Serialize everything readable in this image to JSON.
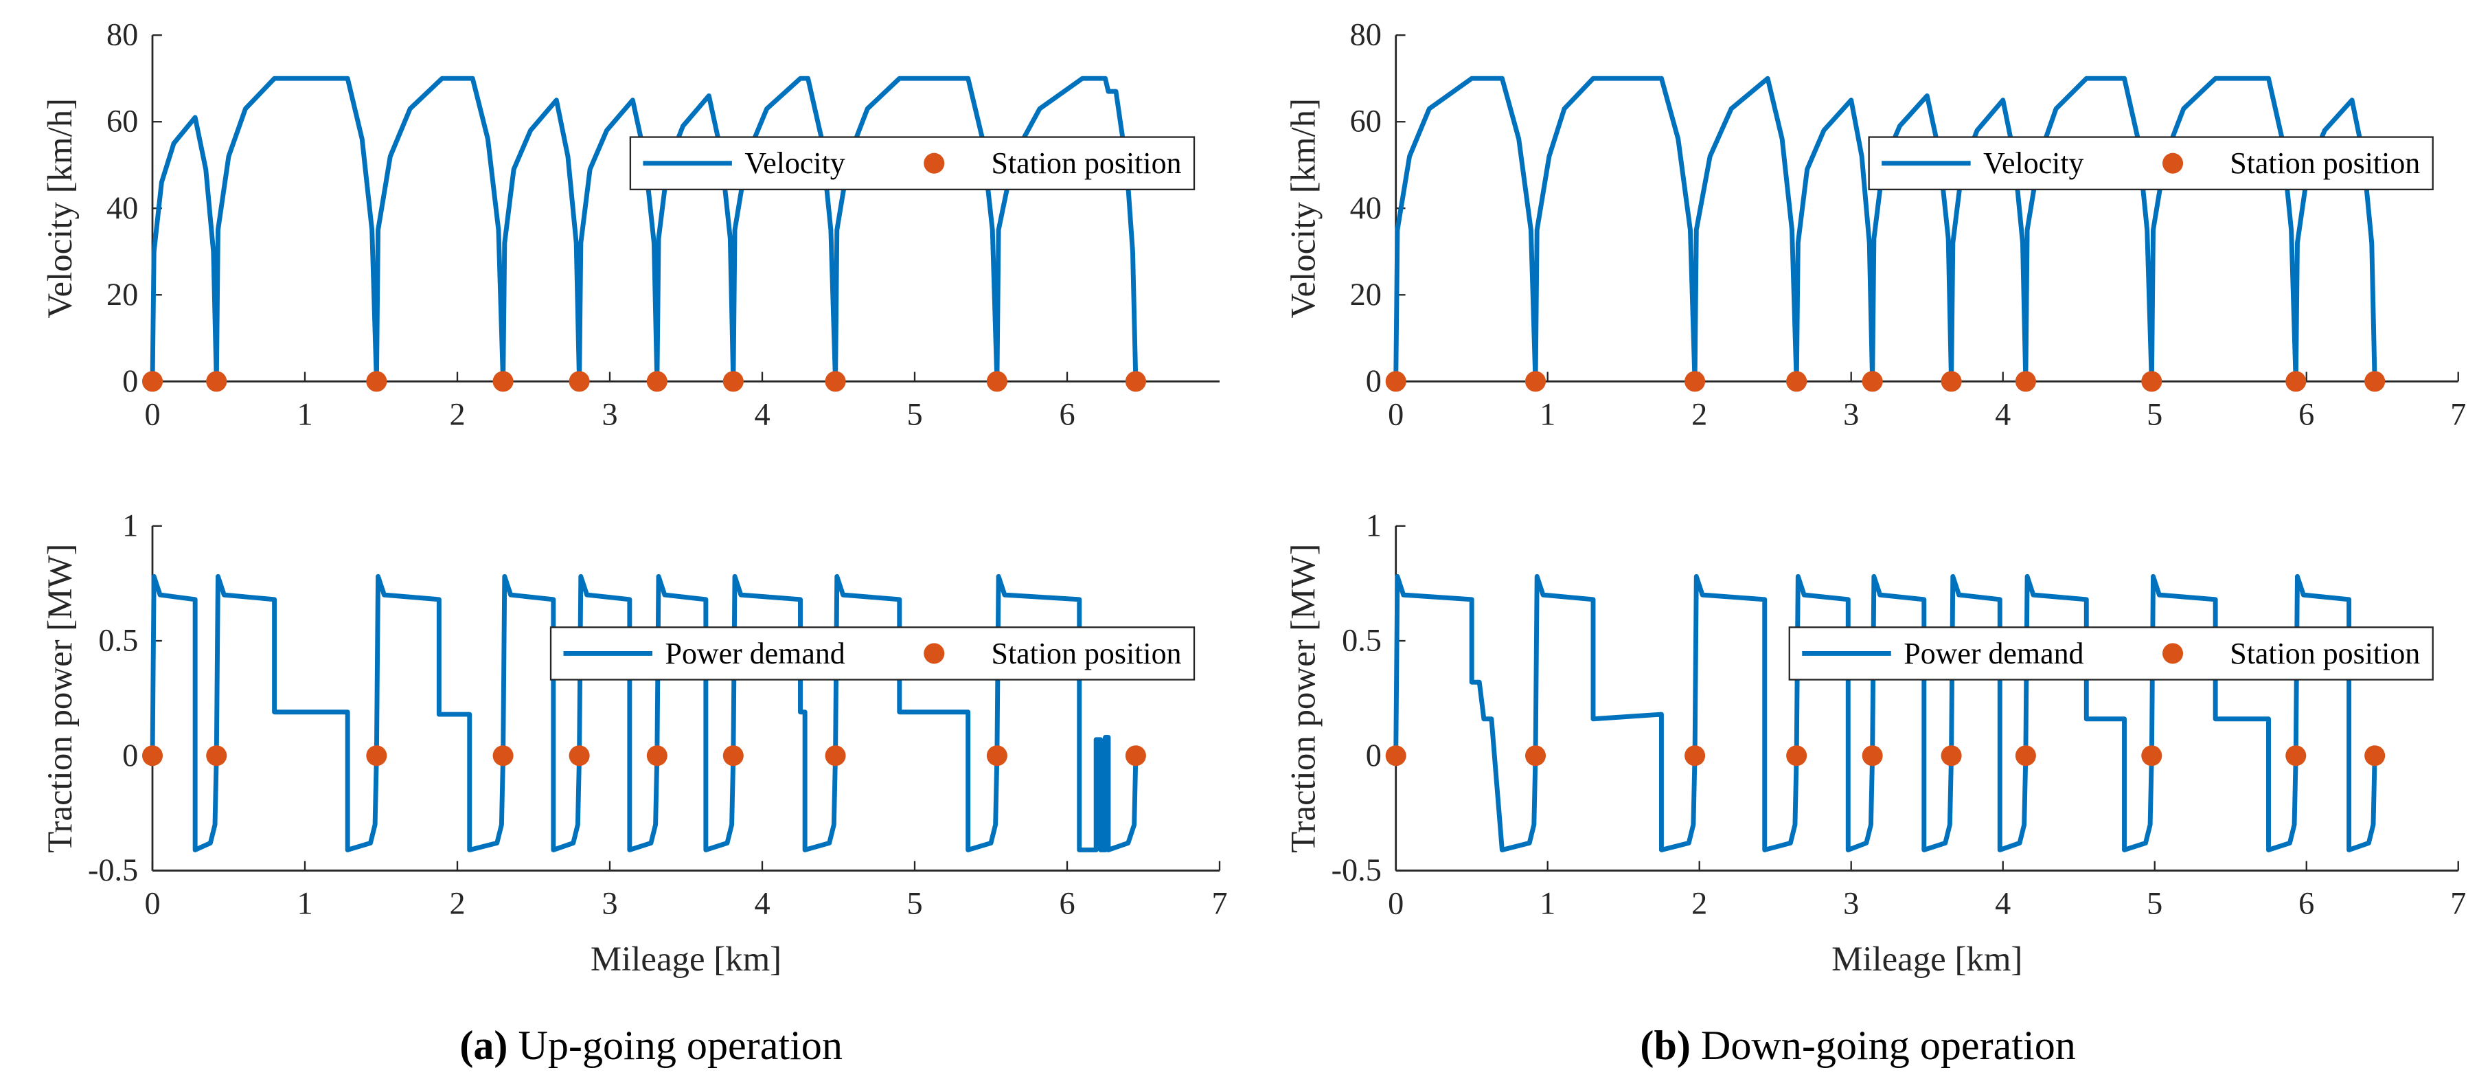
{
  "chart_data": [
    {
      "type": "line",
      "ylabel": "Velocity [km/h]",
      "xlim": [
        0,
        7
      ],
      "xticks": [
        0,
        1,
        2,
        3,
        4,
        5,
        6
      ],
      "ylim": [
        0,
        80
      ],
      "yticks": [
        0,
        20,
        40,
        60,
        80
      ],
      "legend": "right",
      "series": [
        {
          "name": "Velocity",
          "style": "line",
          "color": "#0072bd",
          "x": [
            0,
            0.01,
            0.06,
            0.14,
            0.28,
            0.35,
            0.4,
            0.42,
            0.43,
            0.5,
            0.61,
            0.8,
            1.28,
            1.375,
            1.44,
            1.47,
            1.48,
            1.56,
            1.69,
            1.9,
            2.1,
            2.2,
            2.27,
            2.3,
            2.31,
            2.37,
            2.48,
            2.65,
            2.725,
            2.78,
            2.8,
            2.81,
            2.87,
            2.98,
            3.15,
            3.23,
            3.29,
            3.31,
            3.32,
            3.38,
            3.48,
            3.65,
            3.73,
            3.79,
            3.81,
            3.82,
            3.9,
            4.03,
            4.25,
            4.3,
            4.39,
            4.45,
            4.48,
            4.49,
            4.57,
            4.69,
            4.9,
            5.35,
            5.445,
            5.51,
            5.54,
            5.55,
            5.65,
            5.82,
            6.1,
            6.25,
            6.27,
            6.32,
            6.39,
            6.43,
            6.45
          ],
          "values": [
            0,
            30,
            46,
            55,
            61,
            49,
            30,
            0,
            35,
            52,
            63,
            70,
            70,
            56,
            35,
            0,
            35,
            52,
            63,
            70,
            70,
            56,
            35,
            0,
            32,
            49,
            58,
            65,
            52,
            32,
            0,
            32,
            49,
            58,
            65,
            52,
            32,
            0,
            33,
            50,
            59,
            66,
            53,
            33,
            0,
            35,
            52,
            63,
            70,
            70,
            56,
            35,
            0,
            35,
            52,
            63,
            70,
            70,
            56,
            35,
            0,
            35,
            52,
            63,
            70,
            70,
            67,
            67,
            50,
            30,
            0
          ]
        },
        {
          "name": "Station position",
          "style": "markers",
          "color": "#d95319",
          "x": [
            0,
            0.42,
            1.47,
            2.3,
            2.8,
            3.31,
            3.81,
            4.48,
            5.54,
            6.45
          ],
          "values": [
            0,
            0,
            0,
            0,
            0,
            0,
            0,
            0,
            0,
            0
          ]
        }
      ]
    },
    {
      "type": "line",
      "ylabel": "Traction power [MW]",
      "xlabel": "Mileage [km]",
      "xlim": [
        0,
        7
      ],
      "xticks": [
        0,
        1,
        2,
        3,
        4,
        5,
        6,
        7
      ],
      "ylim": [
        -0.5,
        1
      ],
      "yticks": [
        -0.5,
        0,
        0.5,
        1
      ],
      "legend": "right",
      "series": [
        {
          "name": "Power demand",
          "style": "line",
          "color": "#0072bd",
          "x": [
            0,
            0.01,
            0.05,
            0.28,
            0.28,
            0.38,
            0.41,
            0.42,
            0.43,
            0.47,
            0.8,
            0.8,
            1.28,
            1.28,
            1.43,
            1.46,
            1.47,
            1.48,
            1.52,
            1.88,
            1.88,
            2.08,
            2.08,
            2.26,
            2.29,
            2.3,
            2.31,
            2.35,
            2.63,
            2.63,
            2.76,
            2.79,
            2.8,
            2.81,
            2.85,
            3.13,
            3.13,
            3.27,
            3.3,
            3.31,
            3.32,
            3.36,
            3.63,
            3.63,
            3.77,
            3.8,
            3.81,
            3.82,
            3.86,
            4.25,
            4.25,
            4.28,
            4.28,
            4.44,
            4.47,
            4.48,
            4.49,
            4.53,
            4.9,
            4.9,
            5.35,
            5.35,
            5.5,
            5.53,
            5.54,
            5.55,
            5.59,
            6.08,
            6.08,
            6.19,
            6.19,
            6.22,
            6.22,
            6.25,
            6.25,
            6.27,
            6.27,
            6.4,
            6.44,
            6.45
          ],
          "values": [
            0,
            0.78,
            0.7,
            0.68,
            -0.41,
            -0.38,
            -0.3,
            0,
            0.78,
            0.7,
            0.68,
            0.19,
            0.19,
            -0.41,
            -0.38,
            -0.3,
            0,
            0.78,
            0.7,
            0.68,
            0.18,
            0.18,
            -0.41,
            -0.38,
            -0.3,
            0,
            0.78,
            0.7,
            0.68,
            -0.41,
            -0.38,
            -0.3,
            0,
            0.78,
            0.7,
            0.68,
            -0.41,
            -0.38,
            -0.3,
            0,
            0.78,
            0.7,
            0.68,
            -0.41,
            -0.38,
            -0.3,
            0,
            0.78,
            0.7,
            0.68,
            0.19,
            0.19,
            -0.41,
            -0.38,
            -0.3,
            0,
            0.78,
            0.7,
            0.68,
            0.19,
            0.19,
            -0.41,
            -0.38,
            -0.3,
            0,
            0.78,
            0.7,
            0.68,
            -0.41,
            -0.41,
            0.07,
            0.07,
            -0.41,
            -0.41,
            0.08,
            0.08,
            -0.41,
            -0.38,
            -0.3,
            0
          ]
        },
        {
          "name": "Station position",
          "style": "markers",
          "color": "#d95319",
          "x": [
            0,
            0.42,
            1.47,
            2.3,
            2.8,
            3.31,
            3.81,
            4.48,
            5.54,
            6.45
          ],
          "values": [
            0,
            0,
            0,
            0,
            0,
            0,
            0,
            0,
            0,
            0
          ]
        }
      ]
    },
    {
      "type": "line",
      "ylabel": "Velocity [km/h]",
      "xlim": [
        0,
        7
      ],
      "xticks": [
        0,
        1,
        2,
        3,
        4,
        5,
        6,
        7
      ],
      "ylim": [
        0,
        80
      ],
      "yticks": [
        0,
        20,
        40,
        60,
        80
      ],
      "legend": "right",
      "series": [
        {
          "name": "Velocity",
          "style": "line",
          "color": "#0072bd",
          "x": [
            0,
            0.01,
            0.09,
            0.22,
            0.5,
            0.7,
            0.81,
            0.89,
            0.92,
            0.93,
            1.01,
            1.11,
            1.3,
            1.75,
            1.86,
            1.94,
            1.97,
            1.98,
            2.07,
            2.21,
            2.45,
            2.545,
            2.61,
            2.64,
            2.65,
            2.71,
            2.82,
            3.0,
            3.07,
            3.12,
            3.14,
            3.15,
            3.21,
            3.32,
            3.5,
            3.58,
            3.64,
            3.66,
            3.67,
            3.73,
            3.83,
            4.0,
            4.075,
            4.13,
            4.15,
            4.16,
            4.24,
            4.35,
            4.55,
            4.8,
            4.89,
            4.95,
            4.98,
            4.99,
            5.07,
            5.19,
            5.4,
            5.75,
            5.84,
            5.9,
            5.93,
            5.94,
            6.01,
            6.12,
            6.3,
            6.375,
            6.43,
            6.45
          ],
          "values": [
            0,
            35,
            52,
            63,
            70,
            70,
            56,
            35,
            0,
            35,
            52,
            63,
            70,
            70,
            56,
            35,
            0,
            35,
            52,
            63,
            70,
            56,
            35,
            0,
            32,
            49,
            58,
            65,
            52,
            32,
            0,
            33,
            50,
            59,
            66,
            53,
            33,
            0,
            32,
            49,
            58,
            65,
            52,
            32,
            0,
            35,
            52,
            63,
            70,
            70,
            56,
            35,
            0,
            35,
            52,
            63,
            70,
            70,
            56,
            35,
            0,
            32,
            49,
            58,
            65,
            52,
            32,
            0
          ]
        },
        {
          "name": "Station position",
          "style": "markers",
          "color": "#d95319",
          "x": [
            0,
            0.92,
            1.97,
            2.64,
            3.14,
            3.66,
            4.15,
            4.98,
            5.93,
            6.45
          ],
          "values": [
            0,
            0,
            0,
            0,
            0,
            0,
            0,
            0,
            0,
            0
          ]
        }
      ]
    },
    {
      "type": "line",
      "ylabel": "Traction power [MW]",
      "xlabel": "Mileage [km]",
      "xlim": [
        0,
        7
      ],
      "xticks": [
        0,
        1,
        2,
        3,
        4,
        5,
        6,
        7
      ],
      "ylim": [
        -0.5,
        1
      ],
      "yticks": [
        -0.5,
        0,
        0.5,
        1
      ],
      "legend": "right",
      "series": [
        {
          "name": "Power demand",
          "style": "line",
          "color": "#0072bd",
          "x": [
            0,
            0.01,
            0.05,
            0.5,
            0.5,
            0.55,
            0.58,
            0.63,
            0.7,
            0.88,
            0.91,
            0.92,
            0.93,
            0.97,
            1.3,
            1.3,
            1.75,
            1.75,
            1.93,
            1.96,
            1.97,
            1.98,
            2.02,
            2.43,
            2.43,
            2.6,
            2.63,
            2.64,
            2.65,
            2.69,
            2.98,
            2.98,
            3.1,
            3.13,
            3.14,
            3.15,
            3.19,
            3.48,
            3.48,
            3.62,
            3.65,
            3.66,
            3.67,
            3.71,
            3.98,
            3.98,
            4.11,
            4.14,
            4.15,
            4.16,
            4.2,
            4.55,
            4.55,
            4.8,
            4.8,
            4.94,
            4.97,
            4.98,
            4.99,
            5.03,
            5.4,
            5.4,
            5.75,
            5.75,
            5.89,
            5.92,
            5.93,
            5.94,
            5.98,
            6.28,
            6.28,
            6.41,
            6.44,
            6.45
          ],
          "values": [
            0,
            0.78,
            0.7,
            0.68,
            0.32,
            0.32,
            0.16,
            0.16,
            -0.41,
            -0.38,
            -0.3,
            0,
            0.78,
            0.7,
            0.68,
            0.16,
            0.18,
            -0.41,
            -0.38,
            -0.3,
            0,
            0.78,
            0.7,
            0.68,
            -0.41,
            -0.38,
            -0.3,
            0,
            0.78,
            0.7,
            0.68,
            -0.41,
            -0.38,
            -0.3,
            0,
            0.78,
            0.7,
            0.68,
            -0.41,
            -0.38,
            -0.3,
            0,
            0.78,
            0.7,
            0.68,
            -0.41,
            -0.38,
            -0.3,
            0,
            0.78,
            0.7,
            0.68,
            0.16,
            0.16,
            -0.41,
            -0.38,
            -0.3,
            0,
            0.78,
            0.7,
            0.68,
            0.16,
            0.16,
            -0.41,
            -0.38,
            -0.3,
            0,
            0.78,
            0.7,
            0.68,
            -0.41,
            -0.38,
            -0.3,
            0
          ]
        },
        {
          "name": "Station position",
          "style": "markers",
          "color": "#d95319",
          "x": [
            0,
            0.92,
            1.97,
            2.64,
            3.14,
            3.66,
            4.15,
            4.98,
            5.93,
            6.45
          ],
          "values": [
            0,
            0,
            0,
            0,
            0,
            0,
            0,
            0,
            0,
            0
          ]
        }
      ]
    }
  ],
  "captions": [
    {
      "label": "(a)",
      "text": "Up-going operation"
    },
    {
      "label": "(b)",
      "text": "Down-going operation"
    }
  ]
}
